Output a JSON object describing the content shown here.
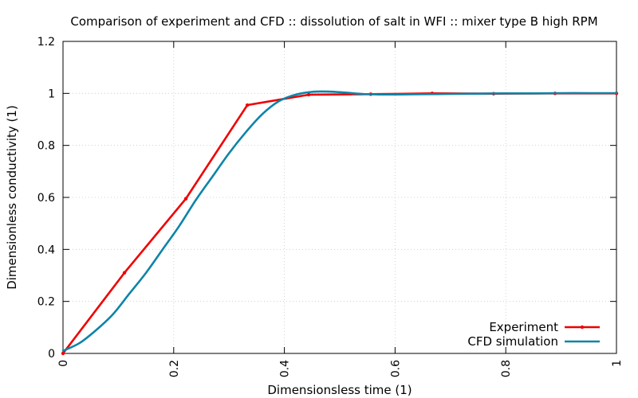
{
  "chart_data": {
    "type": "line",
    "title": "Comparison of experiment and CFD :: dissolution of salt in WFI :: mixer type B high RPM",
    "xlabel": "Dimensionsless time (1)",
    "ylabel": "Dimensionless conductivity (1)",
    "xlim": [
      0,
      1
    ],
    "ylim": [
      0,
      1.2
    ],
    "x_ticks": [
      0,
      0.2,
      0.4,
      0.6,
      0.8,
      1
    ],
    "x_tick_labels": [
      "0",
      "0.2",
      "0.4",
      "0.6",
      "0.8",
      "1"
    ],
    "y_ticks": [
      0,
      0.2,
      0.4,
      0.6,
      0.8,
      1,
      1.2
    ],
    "y_tick_labels": [
      "0",
      "0.2",
      "0.4",
      "0.6",
      "0.8",
      "1",
      "1.2"
    ],
    "grid": true,
    "legend_position": "bottom-right",
    "series": [
      {
        "name": "Experiment",
        "color": "#ee0000",
        "marker": "point",
        "x": [
          0,
          0.111,
          0.222,
          0.333,
          0.444,
          0.556,
          0.667,
          0.778,
          0.889,
          1.0
        ],
        "y": [
          0,
          0.31,
          0.595,
          0.955,
          0.995,
          0.997,
          1.0,
          0.999,
          1.0,
          1.0
        ]
      },
      {
        "name": "CFD simulation",
        "color": "#0e84a8",
        "marker": "none",
        "x": [
          0,
          0.03,
          0.06,
          0.09,
          0.12,
          0.15,
          0.18,
          0.21,
          0.24,
          0.27,
          0.3,
          0.33,
          0.36,
          0.39,
          0.42,
          0.45,
          0.48,
          0.51,
          0.54,
          0.57,
          0.6,
          0.65,
          0.7,
          0.75,
          0.8,
          0.85,
          0.9,
          0.95,
          1.0
        ],
        "y": [
          0.01,
          0.04,
          0.09,
          0.15,
          0.23,
          0.31,
          0.4,
          0.49,
          0.59,
          0.68,
          0.77,
          0.85,
          0.92,
          0.97,
          0.995,
          1.006,
          1.007,
          1.003,
          0.998,
          0.996,
          0.996,
          0.997,
          0.998,
          0.999,
          1.0,
          1.0,
          1.001,
          1.001,
          1.001
        ]
      }
    ]
  }
}
